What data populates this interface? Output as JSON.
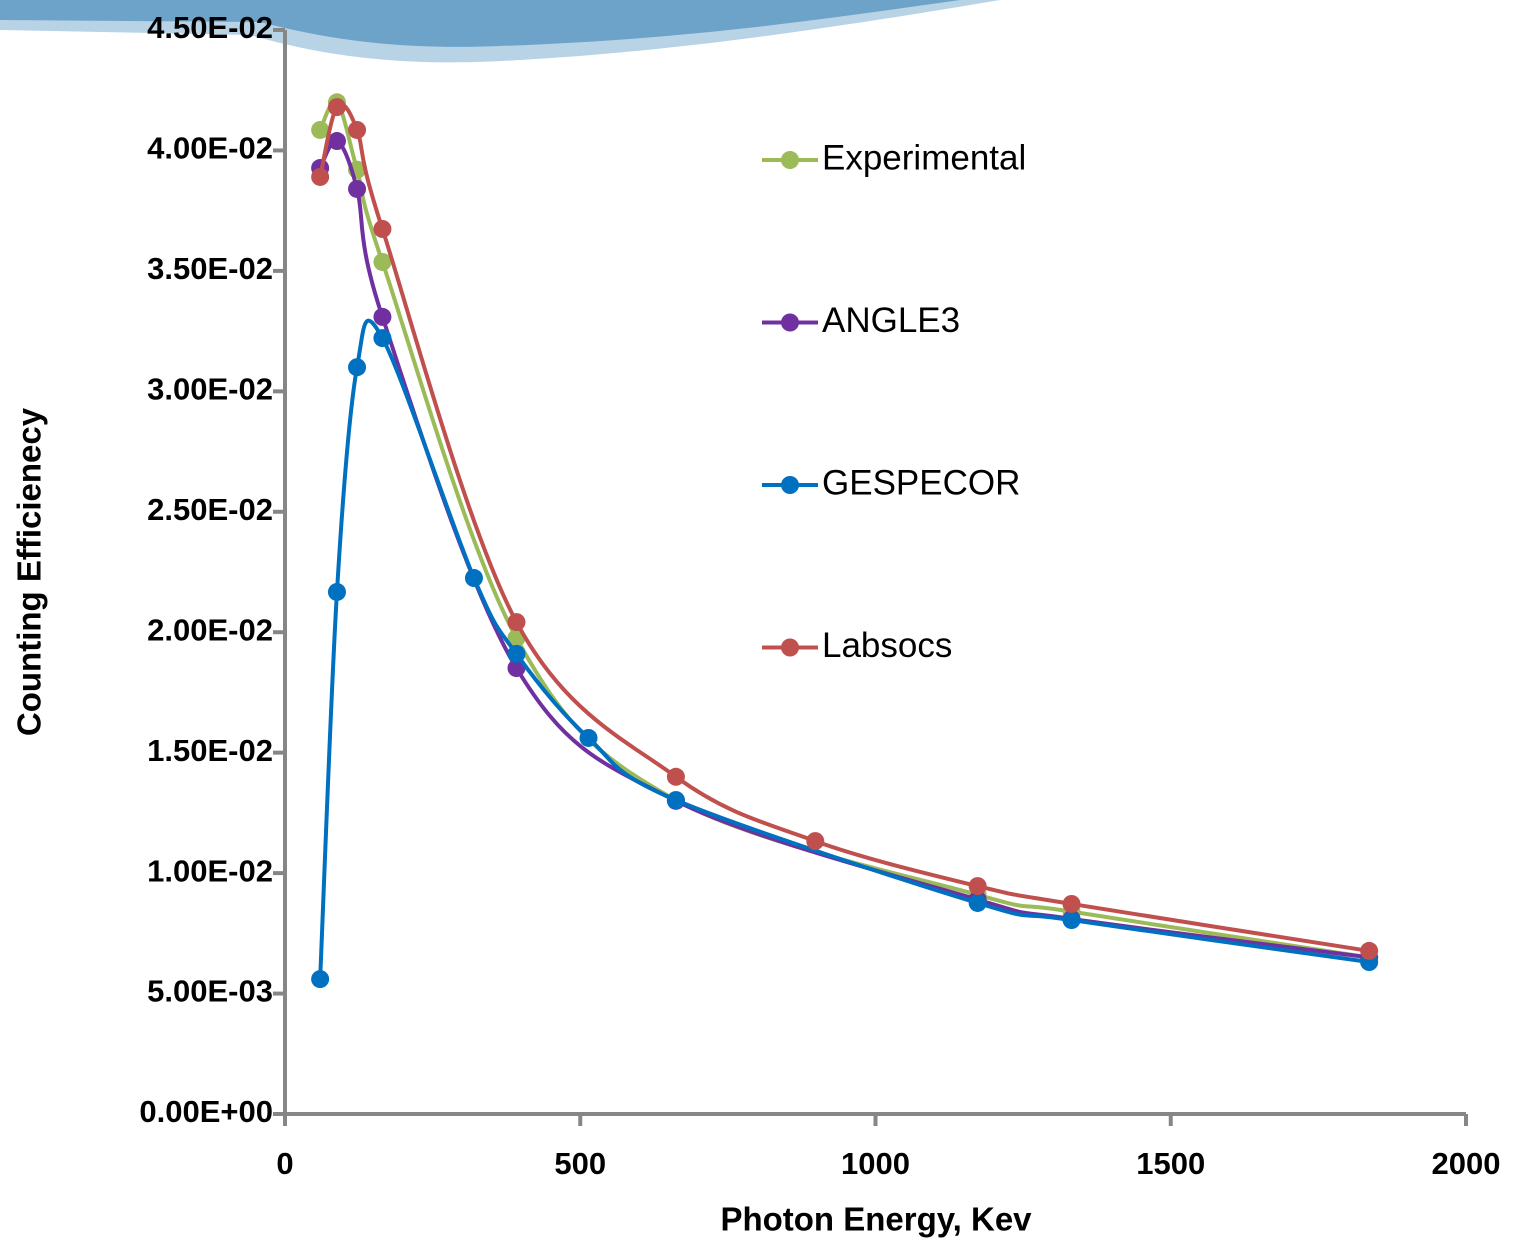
{
  "chart_data": {
    "type": "line",
    "smooth": true,
    "x_label": "Photon Energy, Kev",
    "y_label": "Counting Efficienecy",
    "xlim": [
      0,
      2000
    ],
    "xticks": [
      0,
      500,
      1000,
      1500,
      2000
    ],
    "ylim": [
      0,
      0.045
    ],
    "yticks": [
      {
        "value": 0,
        "label": "0.00E+00"
      },
      {
        "value": 0.005,
        "label": "5.00E-03"
      },
      {
        "value": 0.01,
        "label": "1.00E-02"
      },
      {
        "value": 0.015,
        "label": "1.50E-02"
      },
      {
        "value": 0.02,
        "label": "2.00E-02"
      },
      {
        "value": 0.025,
        "label": "2.50E-02"
      },
      {
        "value": 0.03,
        "label": "3.00E-02"
      },
      {
        "value": 0.035,
        "label": "3.50E-02"
      },
      {
        "value": 0.04,
        "label": "4.00E-02"
      },
      {
        "value": 0.045,
        "label": "4.50E-02"
      }
    ],
    "series": [
      {
        "name": "Experimental",
        "color": "#9bbb59",
        "x": [
          59.5,
          88,
          122,
          165,
          392,
          662,
          1173,
          1332,
          1836
        ],
        "values": [
          0.04085,
          0.042,
          0.0392,
          0.03537,
          0.01976,
          0.01303,
          0.0091,
          0.0084,
          0.0065
        ]
      },
      {
        "name": "ANGLE3",
        "color": "#7030a0",
        "x": [
          59.5,
          88,
          122,
          165,
          392,
          662,
          1173,
          1332,
          1836
        ],
        "values": [
          0.03927,
          0.04039,
          0.0384,
          0.03309,
          0.01851,
          0.013,
          0.0089,
          0.0081,
          0.0065
        ]
      },
      {
        "name": "GESPECOR",
        "color": "#0070c0",
        "x": [
          59.5,
          88,
          122,
          165,
          320,
          392,
          514,
          662,
          1173,
          1332,
          1836
        ],
        "values": [
          0.0056,
          0.02167,
          0.031,
          0.03221,
          0.02225,
          0.0191,
          0.01561,
          0.01303,
          0.00876,
          0.00805,
          0.00631
        ]
      },
      {
        "name": "Labsocs",
        "color": "#c0504d",
        "x": [
          59.5,
          88,
          122,
          165,
          392,
          662,
          898,
          1173,
          1332,
          1836
        ],
        "values": [
          0.0389,
          0.0418,
          0.04085,
          0.03674,
          0.02042,
          0.014,
          0.01133,
          0.00946,
          0.00872,
          0.00677
        ]
      }
    ]
  }
}
